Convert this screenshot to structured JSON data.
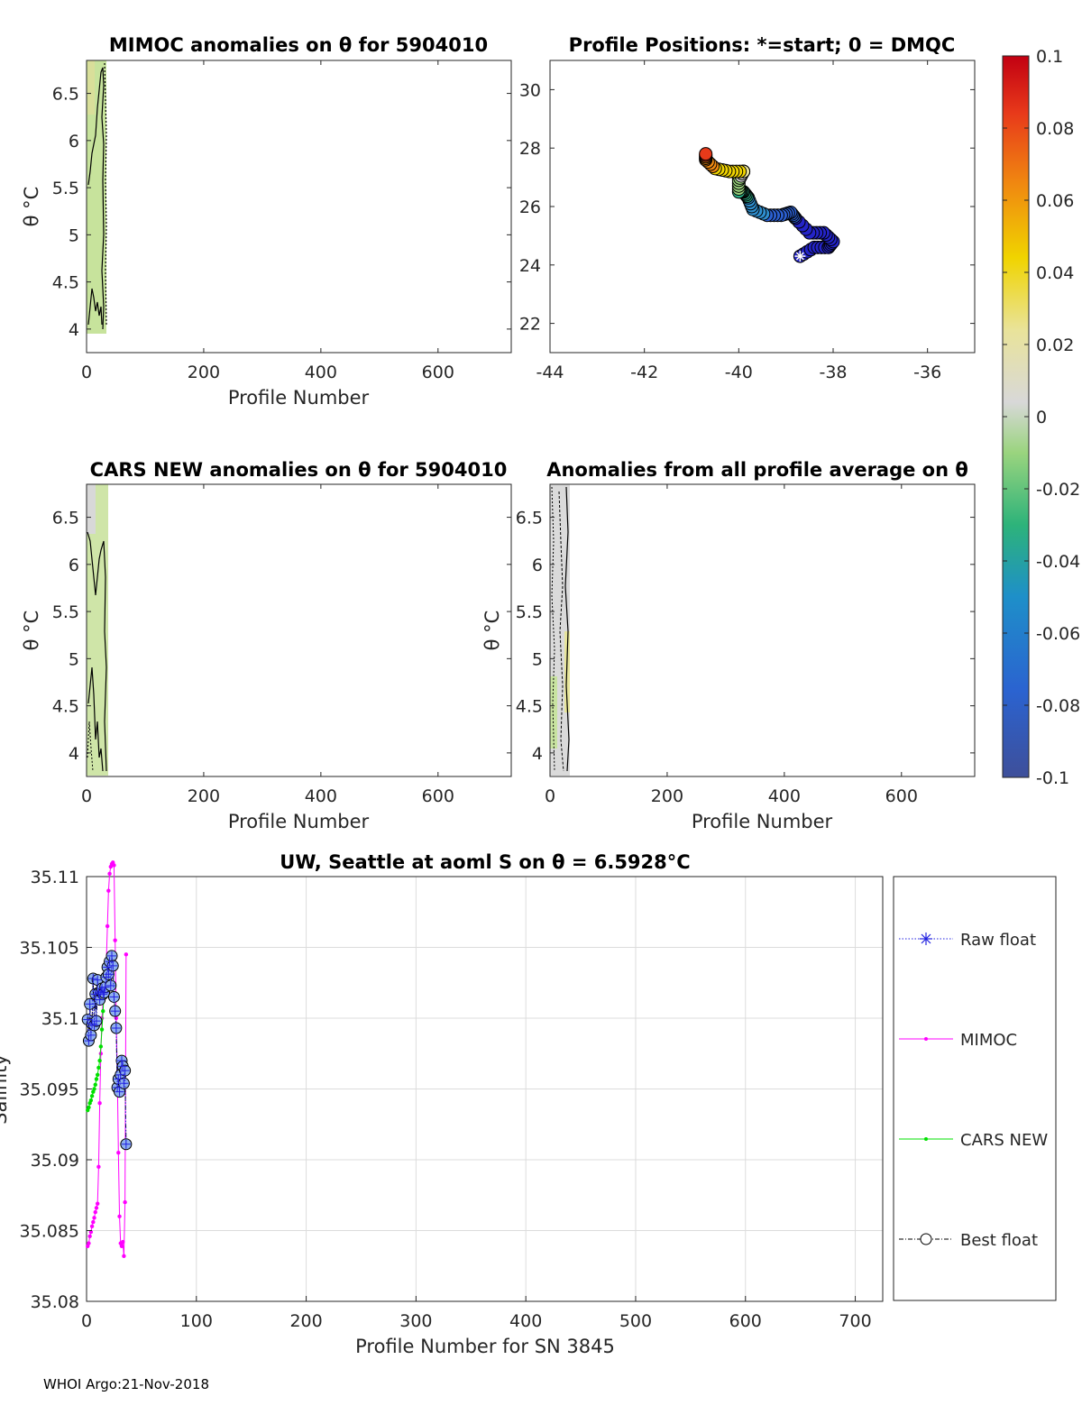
{
  "footer": "WHOI Argo:21-Nov-2018",
  "panels": {
    "mimoc": {
      "title": "MIMOC anomalies on θ  for 5904010",
      "xlabel": "Profile Number",
      "ylabel": "θ °C",
      "xlim": [
        0,
        725
      ],
      "ylim": [
        3.75,
        6.85
      ],
      "xticks": [
        "0",
        "200",
        "400",
        "600"
      ],
      "yticks": [
        "4",
        "4.5",
        "5",
        "5.5",
        "6",
        "6.5"
      ]
    },
    "positions": {
      "title": "Profile Positions: *=start; 0 = DMQC",
      "xlim": [
        -44,
        -35
      ],
      "ylim": [
        21,
        31
      ],
      "xticks": [
        "-44",
        "-42",
        "-40",
        "-38",
        "-36"
      ],
      "yticks": [
        "22",
        "24",
        "26",
        "28",
        "30"
      ]
    },
    "cars": {
      "title": "CARS NEW anomalies on θ for 5904010",
      "xlabel": "Profile Number",
      "ylabel": "θ °C",
      "xticks": [
        "0",
        "200",
        "400",
        "600"
      ],
      "yticks": [
        "4",
        "4.5",
        "5",
        "5.5",
        "6",
        "6.5"
      ]
    },
    "avg": {
      "title": "Anomalies from all profile average on θ",
      "xlabel": "Profile Number",
      "ylabel": "θ °C",
      "xticks": [
        "0",
        "200",
        "400",
        "600"
      ],
      "yticks": [
        "4",
        "4.5",
        "5",
        "5.5",
        "6",
        "6.5"
      ]
    },
    "colorbar": {
      "ticks": [
        "0.1",
        "0.08",
        "0.06",
        "0.04",
        "0.02",
        "0",
        "-0.02",
        "-0.04",
        "-0.06",
        "-0.08",
        "-0.1"
      ]
    },
    "salinity": {
      "title": "UW, Seattle at aoml S on θ = 6.5928°C",
      "xlabel": "Profile Number for SN 3845",
      "ylabel": "Salinity",
      "xticks": [
        "0",
        "100",
        "200",
        "300",
        "400",
        "500",
        "600",
        "700"
      ],
      "yticks": [
        "35.08",
        "35.085",
        "35.09",
        "35.095",
        "35.1",
        "35.105",
        "35.11"
      ],
      "legend": [
        "Raw float",
        "MIMOC",
        "CARS NEW",
        "Best float"
      ]
    }
  },
  "chart_data": [
    {
      "type": "heatmap",
      "title": "MIMOC anomalies on θ  for 5904010",
      "xlabel": "Profile Number",
      "ylabel": "θ °C",
      "xlim": [
        0,
        725
      ],
      "ylim": [
        3.75,
        6.85
      ],
      "profile_range": [
        1,
        36
      ],
      "dominant_anomaly": -0.015
    },
    {
      "type": "scatter",
      "title": "Profile Positions: *=start; 0 = DMQC",
      "xlim": [
        -44,
        -35
      ],
      "ylim": [
        21,
        31
      ],
      "x": [
        -38.7,
        -38.4,
        -38.1,
        -38.0,
        -38.2,
        -38.5,
        -38.8,
        -38.9,
        -39.1,
        -39.4,
        -39.7,
        -39.8,
        -39.9,
        -40.0,
        -40.0,
        -39.9,
        -39.9,
        -40.2,
        -40.5,
        -40.7,
        -40.7
      ],
      "y": [
        24.3,
        24.6,
        24.6,
        24.8,
        25.1,
        25.1,
        25.6,
        25.8,
        25.7,
        25.7,
        25.9,
        26.3,
        26.5,
        26.5,
        26.9,
        27.2,
        27.2,
        27.2,
        27.3,
        27.6,
        27.8
      ],
      "anomaly": [
        -0.1,
        -0.1,
        -0.1,
        -0.1,
        -0.09,
        -0.09,
        -0.08,
        -0.07,
        -0.07,
        -0.06,
        -0.05,
        -0.04,
        -0.03,
        -0.02,
        -0.01,
        0.02,
        0.04,
        0.05,
        0.06,
        0.07,
        0.09
      ],
      "start": [
        -38.7,
        24.3
      ],
      "colorbar_range": [
        -0.1,
        0.1
      ]
    },
    {
      "type": "heatmap",
      "title": "CARS NEW anomalies on θ for 5904010",
      "xlabel": "Profile Number",
      "ylabel": "θ °C",
      "profile_range": [
        1,
        36
      ],
      "dominant_anomaly": -0.012
    },
    {
      "type": "heatmap",
      "title": "Anomalies from all profile average on θ",
      "xlabel": "Profile Number",
      "ylabel": "θ °C",
      "profile_range": [
        1,
        36
      ],
      "dominant_anomaly": 0.0
    },
    {
      "type": "line",
      "title": "UW, Seattle at aoml S on θ = 6.5928°C",
      "xlabel": "Profile Number for SN 3845",
      "ylabel": "Salinity",
      "xlim": [
        0,
        725
      ],
      "ylim": [
        35.08,
        35.11
      ],
      "series": [
        {
          "name": "Raw float",
          "x": [
            1,
            2,
            3,
            4,
            5,
            6,
            7,
            8,
            9,
            10,
            11,
            12,
            13,
            14,
            15,
            16,
            17,
            18,
            19,
            20,
            21,
            22,
            23,
            24,
            25,
            26,
            27,
            28,
            29,
            30,
            31,
            32,
            33,
            34,
            35,
            36
          ],
          "values": [
            35.0999,
            35.0984,
            35.101,
            35.0988,
            35.0996,
            35.1028,
            35.0995,
            35.1017,
            35.0998,
            35.1027,
            35.1018,
            35.1013,
            35.1019,
            35.1021,
            35.1017,
            35.1018,
            35.1022,
            35.1029,
            35.1036,
            35.1031,
            35.104,
            35.1023,
            35.1044,
            35.1037,
            35.1015,
            35.1005,
            35.0993,
            35.0951,
            35.0957,
            35.0948,
            35.096,
            35.097,
            35.0966,
            35.0954,
            35.0963,
            35.0911
          ]
        },
        {
          "name": "MIMOC",
          "x": [
            1,
            2,
            3,
            4,
            5,
            6,
            7,
            8,
            9,
            10,
            11,
            12,
            13,
            14,
            15,
            16,
            17,
            18,
            19,
            20,
            21,
            22,
            23,
            24,
            25,
            26,
            27,
            28,
            29,
            30,
            31,
            32,
            33,
            34,
            35,
            36
          ],
          "values": [
            35.0839,
            35.0841,
            35.0846,
            35.0849,
            35.0853,
            35.0856,
            35.0859,
            35.0863,
            35.0866,
            35.0869,
            35.0895,
            35.094,
            35.0975,
            35.1,
            35.1012,
            35.1023,
            35.103,
            35.104,
            35.1065,
            35.109,
            35.1102,
            35.1107,
            35.1109,
            35.111,
            35.1108,
            35.1055,
            35.1,
            35.096,
            35.0905,
            35.086,
            35.0841,
            35.0839,
            35.0842,
            35.0832,
            35.087,
            35.1045
          ]
        },
        {
          "name": "CARS NEW",
          "x": [
            1,
            2,
            3,
            4,
            5,
            6,
            7,
            8,
            9,
            10,
            11,
            12,
            13,
            14,
            15,
            16
          ],
          "values": [
            35.0935,
            35.0937,
            35.094,
            35.0942,
            35.0945,
            35.0948,
            35.095,
            35.0953,
            35.0957,
            35.096,
            35.0965,
            35.097,
            35.098,
            35.0992,
            35.1005,
            35.1018
          ]
        },
        {
          "name": "Best float",
          "x": [
            1,
            2,
            3,
            4,
            5,
            6,
            7,
            8,
            9,
            10,
            11,
            12,
            13,
            14,
            15,
            16,
            17,
            18,
            19,
            20,
            21,
            22,
            23,
            24,
            25,
            26,
            27,
            28,
            29,
            30,
            31,
            32,
            33,
            34,
            35,
            36
          ],
          "values": [
            35.0999,
            35.0984,
            35.101,
            35.0988,
            35.0996,
            35.1028,
            35.0995,
            35.1017,
            35.0998,
            35.1027,
            35.1018,
            35.1013,
            35.1019,
            35.1021,
            35.1017,
            35.1018,
            35.1022,
            35.1029,
            35.1036,
            35.1031,
            35.104,
            35.1023,
            35.1044,
            35.1037,
            35.1015,
            35.1005,
            35.0993,
            35.0951,
            35.0957,
            35.0948,
            35.096,
            35.097,
            35.0966,
            35.0954,
            35.0963,
            35.0911
          ]
        }
      ],
      "grid": true,
      "legend_position": "right"
    }
  ]
}
